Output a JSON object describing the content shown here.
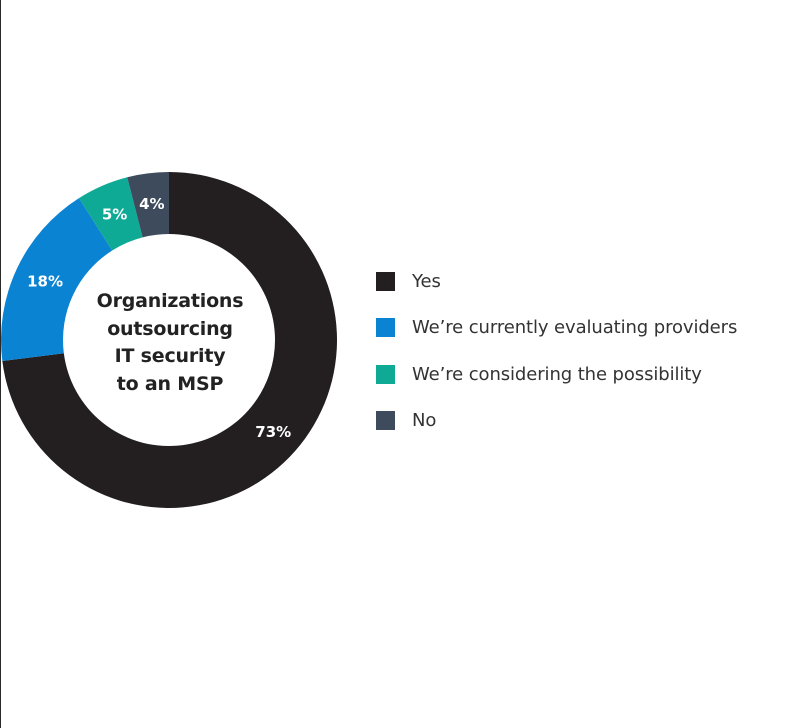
{
  "chart_data": {
    "type": "pie",
    "variant": "donut",
    "title": "Organizations outsourcing IT security to an MSP",
    "title_lines": [
      "Organizations",
      "outsourcing",
      "IT security",
      "to an MSP"
    ],
    "categories": [
      "Yes",
      "We’re currently evaluating providers",
      "We’re considering the possibility",
      "No"
    ],
    "values": [
      73,
      18,
      5,
      4
    ],
    "data_labels": [
      "73%",
      "18%",
      "5%",
      "4%"
    ],
    "colors": [
      "#231f20",
      "#0a83d3",
      "#0faa96",
      "#3d4b5c"
    ],
    "unit": "%",
    "legend_position": "right"
  }
}
